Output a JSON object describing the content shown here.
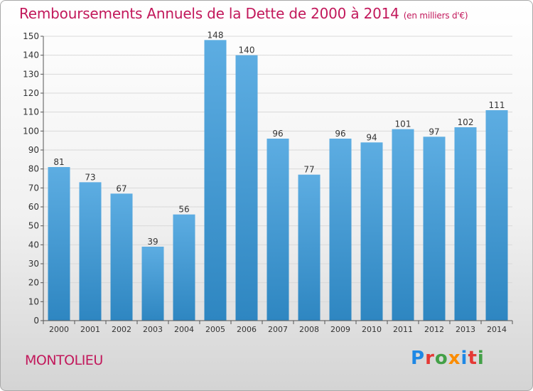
{
  "title": {
    "main": "Remboursements Annuels de la Dette de 2000 à 2014",
    "unit": "(en milliers d'€)"
  },
  "place": "MONTOLIEU",
  "brand": {
    "text": "Proxiti",
    "letters": [
      {
        "char": "P",
        "color": "#1e88e5"
      },
      {
        "char": "r",
        "color": "#e53935"
      },
      {
        "char": "o",
        "color": "#43a047"
      },
      {
        "char": "x",
        "color": "#fb8c00"
      },
      {
        "char": "i",
        "color": "#1e88e5"
      },
      {
        "char": "t",
        "color": "#e53935"
      },
      {
        "char": "i",
        "color": "#43a047"
      }
    ]
  },
  "colors": {
    "title": "#c2185b",
    "bar_top": "#5dade2",
    "bar_bottom": "#2e86c1",
    "grid": "#d9d9d9",
    "axis": "#555555",
    "text": "#333333"
  },
  "chart_data": {
    "type": "bar",
    "title": "Remboursements Annuels de la Dette de 2000 à 2014",
    "subtitle": "(en milliers d'€)",
    "xlabel": "",
    "ylabel": "",
    "categories": [
      "2000",
      "2001",
      "2002",
      "2003",
      "2004",
      "2005",
      "2006",
      "2007",
      "2008",
      "2009",
      "2010",
      "2011",
      "2012",
      "2013",
      "2014"
    ],
    "values": [
      81,
      73,
      67,
      39,
      56,
      148,
      140,
      96,
      77,
      96,
      94,
      101,
      97,
      102,
      111
    ],
    "ylim": [
      0,
      150
    ],
    "yticks": [
      0,
      10,
      20,
      30,
      40,
      50,
      60,
      70,
      80,
      90,
      100,
      110,
      120,
      130,
      140,
      150
    ],
    "grid": true,
    "legend": "none",
    "data_labels": true
  }
}
